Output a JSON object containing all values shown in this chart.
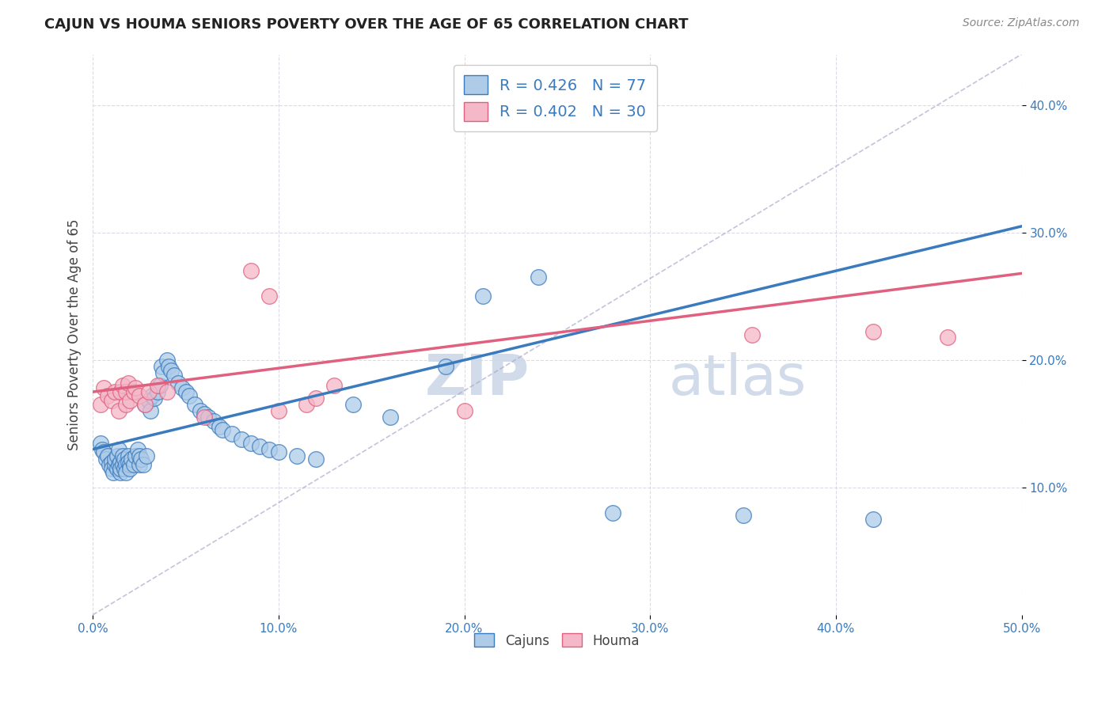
{
  "title": "CAJUN VS HOUMA SENIORS POVERTY OVER THE AGE OF 65 CORRELATION CHART",
  "source": "Source: ZipAtlas.com",
  "ylabel": "Seniors Poverty Over the Age of 65",
  "xlim": [
    0.0,
    0.5
  ],
  "ylim": [
    0.0,
    0.44
  ],
  "xticks": [
    0.0,
    0.1,
    0.2,
    0.3,
    0.4,
    0.5
  ],
  "yticks": [
    0.1,
    0.2,
    0.3,
    0.4
  ],
  "cajun_R": 0.426,
  "cajun_N": 77,
  "houma_R": 0.402,
  "houma_N": 30,
  "cajun_color": "#aecce8",
  "houma_color": "#f4b8c8",
  "cajun_line_color": "#3a7abf",
  "houma_line_color": "#e06080",
  "legend_text_color": "#3a7abf",
  "watermark_color": "#ccd8e8",
  "cajun_line_x0": 0.0,
  "cajun_line_y0": 0.13,
  "cajun_line_x1": 0.5,
  "cajun_line_y1": 0.305,
  "houma_line_x0": 0.0,
  "houma_line_y0": 0.175,
  "houma_line_x1": 0.5,
  "houma_line_y1": 0.268,
  "cajun_x": [
    0.004,
    0.005,
    0.006,
    0.007,
    0.008,
    0.009,
    0.01,
    0.01,
    0.011,
    0.012,
    0.012,
    0.013,
    0.013,
    0.014,
    0.014,
    0.015,
    0.015,
    0.015,
    0.016,
    0.016,
    0.017,
    0.017,
    0.018,
    0.018,
    0.019,
    0.019,
    0.02,
    0.02,
    0.021,
    0.022,
    0.023,
    0.024,
    0.025,
    0.025,
    0.026,
    0.027,
    0.028,
    0.029,
    0.03,
    0.031,
    0.032,
    0.033,
    0.035,
    0.036,
    0.037,
    0.038,
    0.04,
    0.041,
    0.042,
    0.044,
    0.046,
    0.048,
    0.05,
    0.052,
    0.055,
    0.058,
    0.06,
    0.062,
    0.065,
    0.068,
    0.07,
    0.075,
    0.08,
    0.085,
    0.09,
    0.095,
    0.1,
    0.11,
    0.12,
    0.14,
    0.16,
    0.19,
    0.21,
    0.24,
    0.28,
    0.35,
    0.42
  ],
  "cajun_y": [
    0.135,
    0.13,
    0.128,
    0.122,
    0.125,
    0.118,
    0.12,
    0.115,
    0.112,
    0.118,
    0.122,
    0.115,
    0.125,
    0.13,
    0.118,
    0.112,
    0.12,
    0.115,
    0.125,
    0.118,
    0.115,
    0.122,
    0.118,
    0.112,
    0.125,
    0.12,
    0.118,
    0.115,
    0.122,
    0.118,
    0.125,
    0.13,
    0.118,
    0.125,
    0.122,
    0.118,
    0.165,
    0.125,
    0.168,
    0.16,
    0.172,
    0.17,
    0.175,
    0.18,
    0.195,
    0.19,
    0.2,
    0.195,
    0.192,
    0.188,
    0.182,
    0.178,
    0.175,
    0.172,
    0.165,
    0.16,
    0.158,
    0.155,
    0.152,
    0.148,
    0.145,
    0.142,
    0.138,
    0.135,
    0.132,
    0.13,
    0.128,
    0.125,
    0.122,
    0.165,
    0.155,
    0.195,
    0.25,
    0.265,
    0.08,
    0.078,
    0.075
  ],
  "houma_x": [
    0.004,
    0.006,
    0.008,
    0.01,
    0.012,
    0.014,
    0.015,
    0.016,
    0.018,
    0.018,
    0.019,
    0.02,
    0.022,
    0.023,
    0.025,
    0.028,
    0.03,
    0.035,
    0.04,
    0.06,
    0.085,
    0.095,
    0.1,
    0.115,
    0.12,
    0.13,
    0.2,
    0.355,
    0.42,
    0.46
  ],
  "houma_y": [
    0.165,
    0.178,
    0.172,
    0.168,
    0.175,
    0.16,
    0.175,
    0.18,
    0.165,
    0.175,
    0.182,
    0.168,
    0.175,
    0.178,
    0.172,
    0.165,
    0.175,
    0.18,
    0.175,
    0.155,
    0.27,
    0.25,
    0.16,
    0.165,
    0.17,
    0.18,
    0.16,
    0.22,
    0.222,
    0.218
  ]
}
